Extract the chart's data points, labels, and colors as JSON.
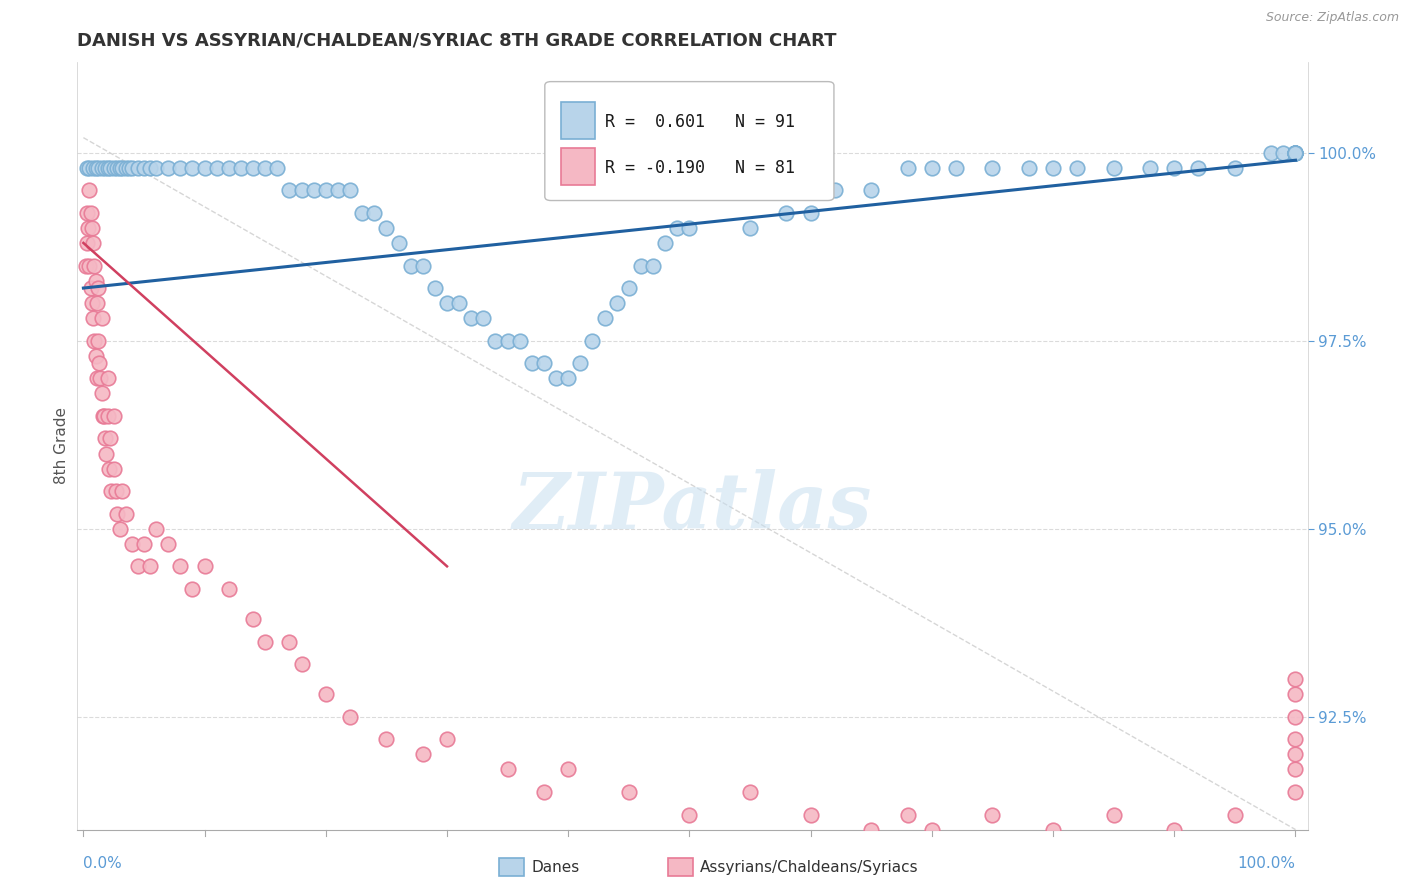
{
  "title": "DANISH VS ASSYRIAN/CHALDEAN/SYRIAC 8TH GRADE CORRELATION CHART",
  "source_text": "Source: ZipAtlas.com",
  "ylabel": "8th Grade",
  "ytick_labels": [
    "92.5%",
    "95.0%",
    "97.5%",
    "100.0%"
  ],
  "ytick_values": [
    92.5,
    95.0,
    97.5,
    100.0
  ],
  "ymin": 91.0,
  "ymax": 101.2,
  "xmin": -0.5,
  "xmax": 101.0,
  "legend_danes": "Danes",
  "legend_assyrians": "Assyrians/Chaldeans/Syriacs",
  "r_danes": 0.601,
  "n_danes": 91,
  "r_assyrians": -0.19,
  "n_assyrians": 81,
  "blue_dot_face": "#b8d4ea",
  "blue_dot_edge": "#7aafd4",
  "pink_dot_face": "#f5b8c4",
  "pink_dot_edge": "#e87a96",
  "blue_line_color": "#2060a0",
  "pink_line_color": "#d04060",
  "diag_line_color": "#cccccc",
  "grid_color": "#cccccc",
  "axis_label_color": "#5b9bd5",
  "ylabel_color": "#555555",
  "title_color": "#333333",
  "source_color": "#999999",
  "watermark_text": "ZIPatlas",
  "watermark_color": "#c8dff0",
  "title_fontsize": 13,
  "tick_fontsize": 11,
  "danes_x": [
    0.3,
    0.5,
    0.8,
    1.0,
    1.2,
    1.5,
    1.8,
    2.0,
    2.2,
    2.5,
    2.8,
    3.0,
    3.2,
    3.5,
    3.8,
    4.0,
    4.5,
    5.0,
    5.5,
    6.0,
    7.0,
    8.0,
    9.0,
    10.0,
    11.0,
    12.0,
    13.0,
    14.0,
    15.0,
    16.0,
    17.0,
    18.0,
    19.0,
    20.0,
    21.0,
    22.0,
    23.0,
    24.0,
    25.0,
    26.0,
    27.0,
    28.0,
    29.0,
    30.0,
    31.0,
    32.0,
    33.0,
    34.0,
    35.0,
    36.0,
    37.0,
    38.0,
    39.0,
    40.0,
    41.0,
    42.0,
    43.0,
    44.0,
    45.0,
    46.0,
    47.0,
    48.0,
    49.0,
    50.0,
    55.0,
    58.0,
    60.0,
    62.0,
    65.0,
    68.0,
    70.0,
    72.0,
    75.0,
    78.0,
    80.0,
    82.0,
    85.0,
    88.0,
    90.0,
    92.0,
    95.0,
    98.0,
    99.0,
    100.0,
    100.0,
    100.0,
    100.0,
    100.0,
    100.0,
    100.0,
    100.0
  ],
  "danes_y": [
    99.8,
    99.8,
    99.8,
    99.8,
    99.8,
    99.8,
    99.8,
    99.8,
    99.8,
    99.8,
    99.8,
    99.8,
    99.8,
    99.8,
    99.8,
    99.8,
    99.8,
    99.8,
    99.8,
    99.8,
    99.8,
    99.8,
    99.8,
    99.8,
    99.8,
    99.8,
    99.8,
    99.8,
    99.8,
    99.8,
    99.5,
    99.5,
    99.5,
    99.5,
    99.5,
    99.5,
    99.2,
    99.2,
    99.0,
    98.8,
    98.5,
    98.5,
    98.2,
    98.0,
    98.0,
    97.8,
    97.8,
    97.5,
    97.5,
    97.5,
    97.2,
    97.2,
    97.0,
    97.0,
    97.2,
    97.5,
    97.8,
    98.0,
    98.2,
    98.5,
    98.5,
    98.8,
    99.0,
    99.0,
    99.0,
    99.2,
    99.2,
    99.5,
    99.5,
    99.8,
    99.8,
    99.8,
    99.8,
    99.8,
    99.8,
    99.8,
    99.8,
    99.8,
    99.8,
    99.8,
    99.8,
    100.0,
    100.0,
    100.0,
    100.0,
    100.0,
    100.0,
    100.0,
    100.0,
    100.0,
    100.0
  ],
  "assyrians_x": [
    0.2,
    0.3,
    0.3,
    0.4,
    0.5,
    0.5,
    0.6,
    0.6,
    0.7,
    0.7,
    0.8,
    0.8,
    0.9,
    0.9,
    1.0,
    1.0,
    1.1,
    1.1,
    1.2,
    1.2,
    1.3,
    1.4,
    1.5,
    1.5,
    1.6,
    1.7,
    1.8,
    1.9,
    2.0,
    2.0,
    2.1,
    2.2,
    2.3,
    2.5,
    2.5,
    2.7,
    2.8,
    3.0,
    3.2,
    3.5,
    4.0,
    4.5,
    5.0,
    5.5,
    6.0,
    7.0,
    8.0,
    9.0,
    10.0,
    12.0,
    14.0,
    15.0,
    17.0,
    18.0,
    20.0,
    22.0,
    25.0,
    28.0,
    30.0,
    35.0,
    38.0,
    40.0,
    45.0,
    50.0,
    55.0,
    60.0,
    65.0,
    68.0,
    70.0,
    75.0,
    80.0,
    85.0,
    90.0,
    95.0,
    100.0,
    100.0,
    100.0,
    100.0,
    100.0,
    100.0,
    100.0
  ],
  "assyrians_y": [
    98.5,
    99.2,
    98.8,
    99.0,
    98.5,
    99.5,
    98.2,
    99.2,
    98.0,
    99.0,
    97.8,
    98.8,
    97.5,
    98.5,
    97.3,
    98.3,
    97.0,
    98.0,
    97.5,
    98.2,
    97.2,
    97.0,
    96.8,
    97.8,
    96.5,
    96.5,
    96.2,
    96.0,
    96.5,
    97.0,
    95.8,
    96.2,
    95.5,
    95.8,
    96.5,
    95.5,
    95.2,
    95.0,
    95.5,
    95.2,
    94.8,
    94.5,
    94.8,
    94.5,
    95.0,
    94.8,
    94.5,
    94.2,
    94.5,
    94.2,
    93.8,
    93.5,
    93.5,
    93.2,
    92.8,
    92.5,
    92.2,
    92.0,
    92.2,
    91.8,
    91.5,
    91.8,
    91.5,
    91.2,
    91.5,
    91.2,
    91.0,
    91.2,
    91.0,
    91.2,
    91.0,
    91.2,
    91.0,
    91.2,
    91.5,
    91.8,
    92.0,
    92.2,
    92.5,
    92.8,
    93.0
  ]
}
